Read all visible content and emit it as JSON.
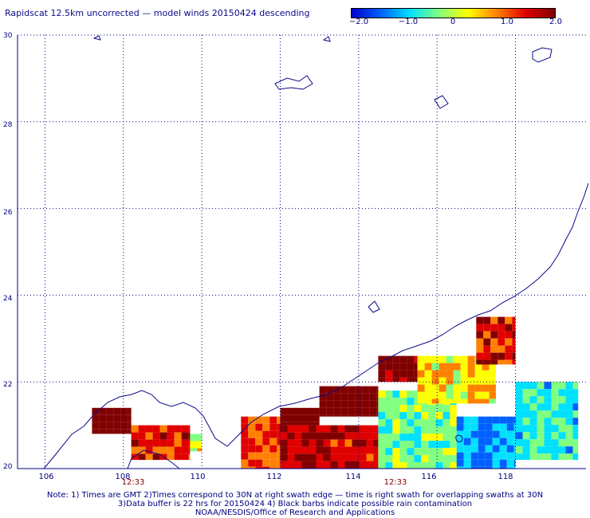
{
  "title": "Rapidscat 12.5km uncorrected — model winds 20150424 descending",
  "colorbar": {
    "labels": [
      "−2.0",
      "−1.0",
      "0",
      "1.0",
      "2.0"
    ],
    "values": [
      -2.0,
      -1.0,
      0,
      1.0,
      2.0
    ],
    "colors": [
      "#0000c8",
      "#0060ff",
      "#00e0ff",
      "#80ff80",
      "#ffff00",
      "#ff8000",
      "#e00000",
      "#800000"
    ]
  },
  "axes": {
    "lat_labels": [
      "30",
      "28",
      "26",
      "24",
      "22",
      "20"
    ],
    "lat_values": [
      30,
      28,
      26,
      24,
      22,
      20
    ],
    "lon_labels": [
      "106",
      "108",
      "110",
      "112",
      "114",
      "116",
      "118"
    ],
    "lon_values": [
      106,
      108,
      110,
      112,
      114,
      116,
      118
    ],
    "lat_range": [
      20,
      30
    ],
    "lon_range": [
      105.3,
      119.8
    ],
    "grid": "dotted"
  },
  "swath_times": [
    {
      "label": "12:33",
      "lon": 108.2
    },
    {
      "label": "12:33",
      "lon": 115.2
    }
  ],
  "notes": [
    "Note: 1) Times are GMT 2)Times correspond to 30N at right swath edge — time is right swath for overlapping swaths at 30N",
    "3)Data buffer is 22 hrs for 20150424 4) Black barbs indicate possible rain contamination",
    "NOAA/NESDIS/Office of Research and Applications"
  ],
  "chart_data": {
    "type": "heatmap",
    "title": "Rapidscat 12.5km uncorrected — model winds 20150424 descending",
    "value_range": [
      -2.0,
      2.0
    ],
    "xlabel": "",
    "ylabel": "",
    "xlim": [
      105.3,
      119.8
    ],
    "ylim": [
      20,
      30
    ],
    "regions": [
      {
        "lon": [
          107.2,
          108.2
        ],
        "lat": [
          20.8,
          21.4
        ],
        "value": 2.0
      },
      {
        "lon": [
          108.2,
          109.7
        ],
        "lat": [
          20.2,
          21.0
        ],
        "value": 1.2
      },
      {
        "lon": [
          109.7,
          110.0
        ],
        "lat": [
          20.4,
          20.8
        ],
        "value": 0.2
      },
      {
        "lon": [
          111.0,
          112.0
        ],
        "lat": [
          20.0,
          21.2
        ],
        "value": 1.0
      },
      {
        "lon": [
          112.0,
          113.0
        ],
        "lat": [
          21.0,
          21.4
        ],
        "value": 2.0
      },
      {
        "lon": [
          112.0,
          114.5
        ],
        "lat": [
          20.0,
          21.0
        ],
        "value": 1.4
      },
      {
        "lon": [
          113.0,
          114.5
        ],
        "lat": [
          21.2,
          21.9
        ],
        "value": 2.0
      },
      {
        "lon": [
          114.5,
          115.5
        ],
        "lat": [
          22.0,
          22.6
        ],
        "value": 1.8
      },
      {
        "lon": [
          114.5,
          116.5
        ],
        "lat": [
          20.0,
          21.8
        ],
        "value": -0.2
      },
      {
        "lon": [
          115.5,
          117.5
        ],
        "lat": [
          21.5,
          22.6
        ],
        "value": 0.4
      },
      {
        "lon": [
          116.5,
          118.0
        ],
        "lat": [
          20.0,
          21.2
        ],
        "value": -1.0
      },
      {
        "lon": [
          117.0,
          118.0
        ],
        "lat": [
          22.4,
          23.5
        ],
        "value": 1.3
      },
      {
        "lon": [
          118.0,
          119.6
        ],
        "lat": [
          20.2,
          22.0
        ],
        "value": -0.6
      }
    ]
  }
}
